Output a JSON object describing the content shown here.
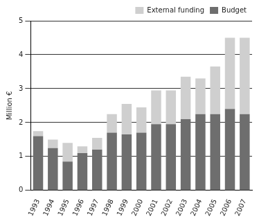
{
  "chart_data": {
    "type": "bar",
    "stacked": true,
    "categories": [
      "1993",
      "1994",
      "1995",
      "1996",
      "1997",
      "1998",
      "1999",
      "2000",
      "2001",
      "2002",
      "2003",
      "2004",
      "2005",
      "2006",
      "2007"
    ],
    "series": [
      {
        "name": "Budget",
        "color": "#6e6e6e",
        "values": [
          1.6,
          1.25,
          0.85,
          1.1,
          1.2,
          1.7,
          1.65,
          1.7,
          1.95,
          1.95,
          2.1,
          2.25,
          2.25,
          2.4,
          2.25
        ]
      },
      {
        "name": "External funding",
        "color": "#cfcfcf",
        "values": [
          0.15,
          0.25,
          0.55,
          0.2,
          0.35,
          0.55,
          0.9,
          0.75,
          1.0,
          1.0,
          1.25,
          1.05,
          1.4,
          2.1,
          2.25
        ]
      }
    ],
    "y_label": "Million €",
    "ylim": [
      0,
      5
    ],
    "yticks": [
      0,
      1,
      2,
      3,
      4,
      5
    ],
    "grid": true,
    "legend": "top-right"
  }
}
